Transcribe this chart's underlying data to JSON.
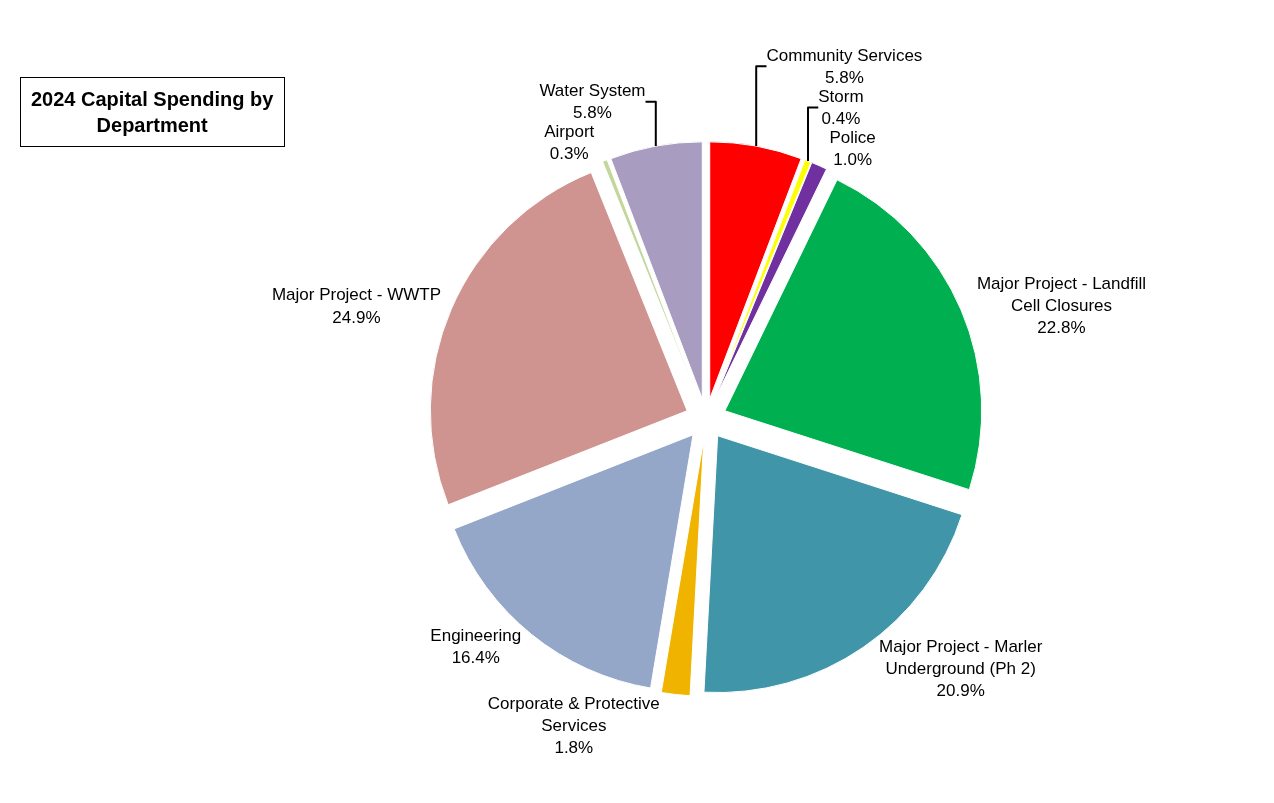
{
  "chart_data": {
    "type": "pie",
    "title": "2024 Capital Spending by Department",
    "categories": [
      "Community Services",
      "Storm",
      "Police",
      "Major Project - Landfill Cell Closures",
      "Major Project - Marler Underground (Ph 2)",
      "Corporate & Protective Services",
      "Engineering",
      "Major Project - WWTP",
      "Airport",
      "Water System"
    ],
    "values": [
      5.8,
      0.4,
      1.0,
      22.8,
      20.9,
      1.8,
      16.4,
      24.9,
      0.3,
      5.8
    ],
    "value_labels": [
      "5.8%",
      "0.4%",
      "1.0%",
      "22.8%",
      "20.9%",
      "1.8%",
      "16.4%",
      "24.9%",
      "0.3%",
      "5.8%"
    ],
    "colors": [
      "#ff0000",
      "#ffff00",
      "#7030a0",
      "#00b050",
      "#4195a8",
      "#f0b400",
      "#94a7c9",
      "#d09490",
      "#c3d69b",
      "#a89cc0"
    ],
    "legend": false
  }
}
